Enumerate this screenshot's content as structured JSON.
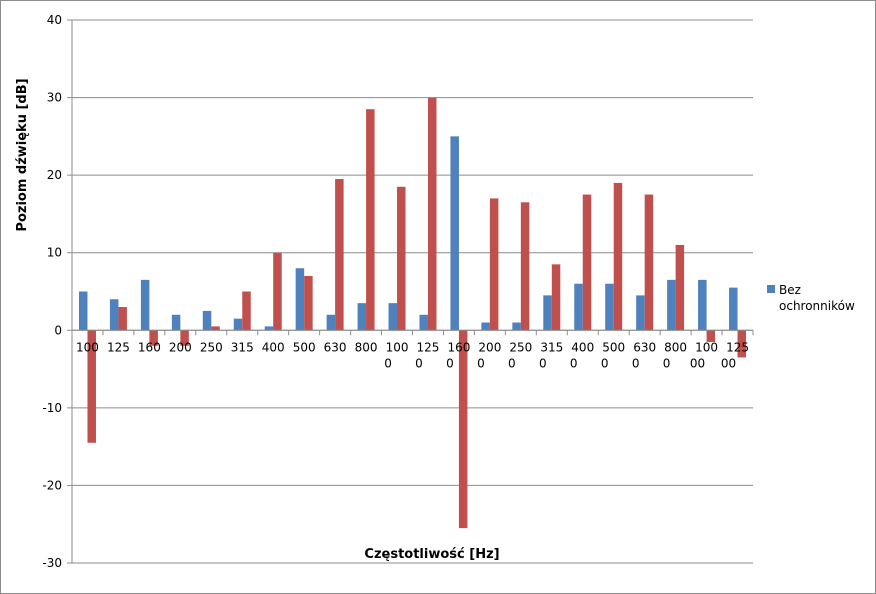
{
  "chart_data": {
    "type": "bar",
    "xlabel": "Częstotliwość [Hz]",
    "ylabel": "Poziom dźwięku [dB]",
    "ylim": [
      -30,
      40
    ],
    "yticks": [
      40,
      30,
      20,
      10,
      0,
      -10,
      -20,
      -30
    ],
    "grid": true,
    "legend_position": "right",
    "categories": [
      [
        "100"
      ],
      [
        "125"
      ],
      [
        "160"
      ],
      [
        "200"
      ],
      [
        "250"
      ],
      [
        "315"
      ],
      [
        "400"
      ],
      [
        "500"
      ],
      [
        "630"
      ],
      [
        "800"
      ],
      [
        "100",
        "0"
      ],
      [
        "125",
        "0"
      ],
      [
        "160",
        "0"
      ],
      [
        "200",
        "0"
      ],
      [
        "250",
        "0"
      ],
      [
        "315",
        "0"
      ],
      [
        "400",
        "0"
      ],
      [
        "500",
        "0"
      ],
      [
        "630",
        "0"
      ],
      [
        "800",
        "0"
      ],
      [
        "100",
        "00"
      ],
      [
        "125",
        "00"
      ]
    ],
    "series": [
      {
        "name": "Bez ochronników",
        "color": "#4f81bd",
        "values": [
          5,
          4,
          6.5,
          2,
          2.5,
          1.5,
          0.5,
          8,
          2,
          3.5,
          3.5,
          2,
          25,
          1,
          1,
          4.5,
          6,
          6,
          4.5,
          6.5,
          6.5,
          5.5
        ]
      },
      {
        "color": "#c0504d",
        "values": [
          -14.5,
          3,
          -2,
          -2,
          0.5,
          5,
          10,
          7,
          19.5,
          28.5,
          18.5,
          30,
          -25.5,
          17,
          16.5,
          8.5,
          17.5,
          19,
          17.5,
          11,
          -1.5,
          -3.5
        ]
      }
    ]
  },
  "legend": {
    "lines": [
      "Bez",
      "ochronników"
    ]
  }
}
